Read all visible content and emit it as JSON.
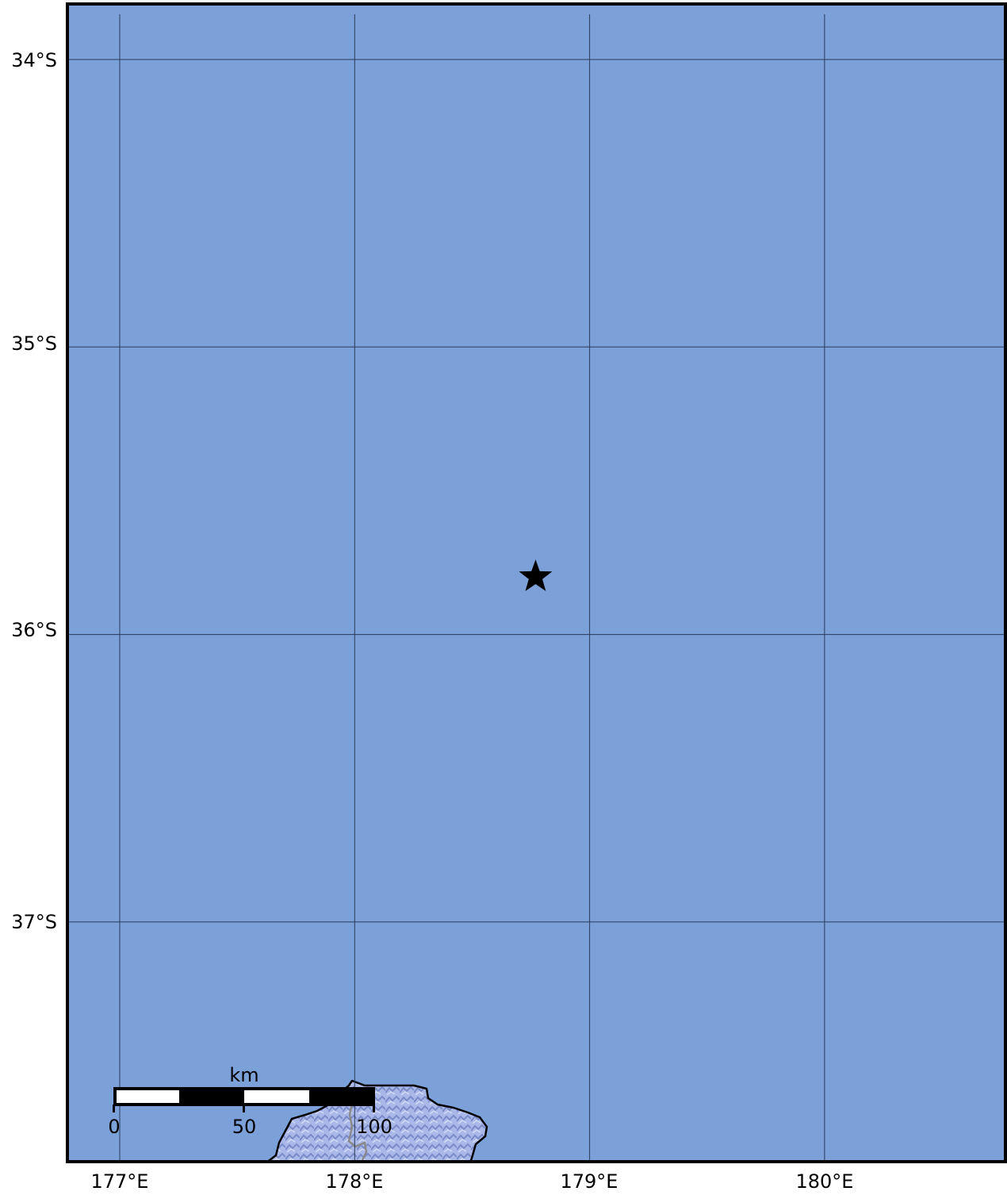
{
  "map": {
    "colors": {
      "ocean": "#7ba1d8",
      "land": "#a9b8e8",
      "land_relief": "#6f7fbf",
      "grid": "#2a3a5c",
      "border": "#000000",
      "coastline": "#000000",
      "road": "#8a8a8a",
      "marker": "#000000"
    },
    "lat_ticks": [
      "34°S",
      "35°S",
      "36°S",
      "37°S"
    ],
    "lon_ticks": [
      "177°E",
      "178°E",
      "179°E",
      "180°E"
    ],
    "epicenter": {
      "icon": "star-icon",
      "lon": 178.77,
      "lat": -35.8
    },
    "scale_bar": {
      "unit": "km",
      "labels": [
        "0",
        "50",
        "100"
      ]
    }
  }
}
